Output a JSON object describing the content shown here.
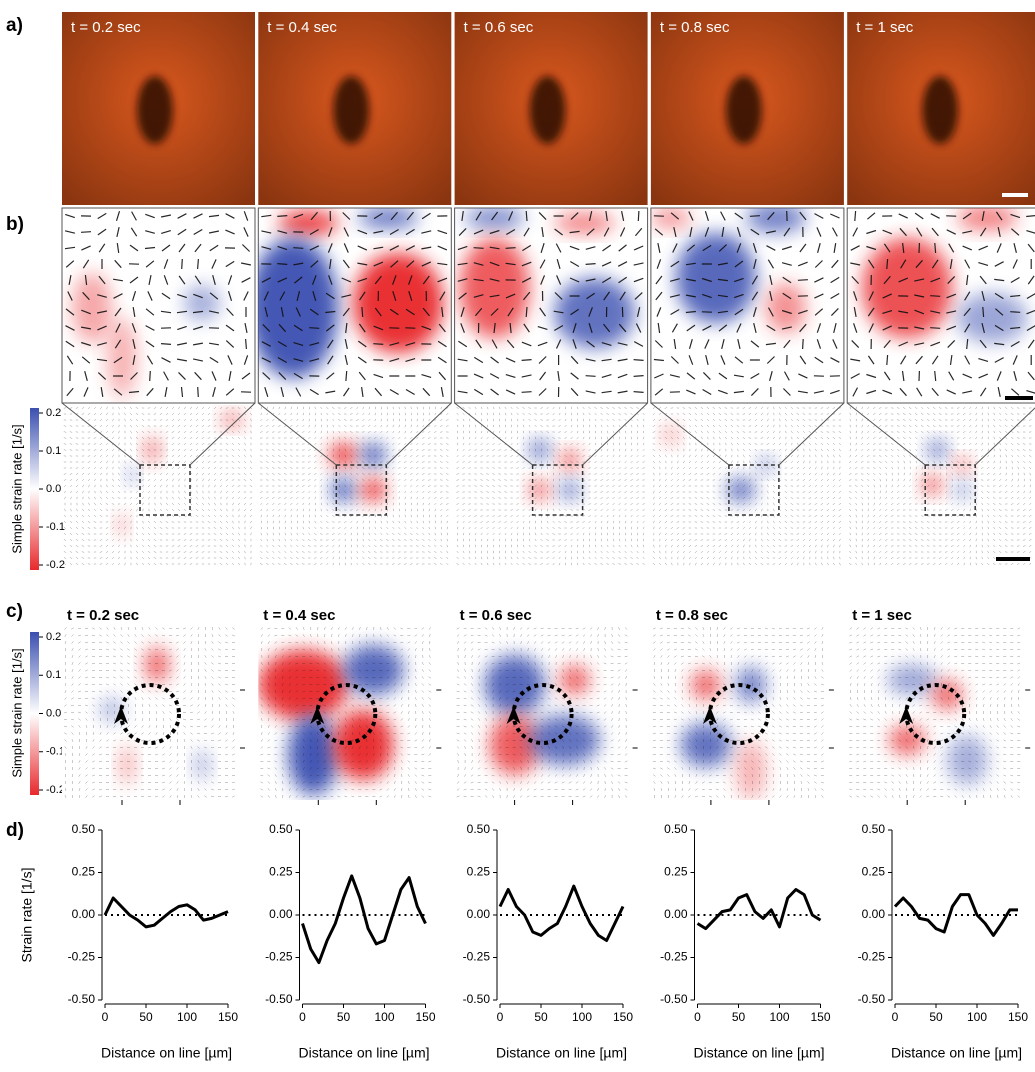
{
  "panels": {
    "a": {
      "label": "a)",
      "times": [
        "t = 0.2 sec",
        "t = 0.4 sec",
        "t = 0.6 sec",
        "t = 0.8 sec",
        "t = 1 sec"
      ]
    },
    "b": {
      "label": "b)",
      "colorbar": {
        "label": "Simple strain rate [1/s]",
        "ticks": [
          0.2,
          0.1,
          {
            "value": 0,
            "label": "0.0"
          },
          -0.1,
          -0.2
        ]
      }
    },
    "c": {
      "label": "c)",
      "times": [
        "t = 0.2 sec",
        "t = 0.4 sec",
        "t = 0.6 sec",
        "t = 0.8 sec",
        "t = 1 sec"
      ],
      "colorbar": {
        "label": "Simple strain rate [1/s]",
        "ticks": [
          0.2,
          0.1,
          {
            "value": 0,
            "label": "0.0"
          },
          -0.1,
          -0.2
        ]
      }
    },
    "d": {
      "label": "d)"
    }
  },
  "chart_data": [
    {
      "type": "line",
      "ylabel": "Strain rate [1/s]",
      "xlabel": "Distance on line [µm]",
      "color": "#000000",
      "x": [
        0,
        10,
        20,
        30,
        40,
        50,
        60,
        70,
        80,
        90,
        100,
        110,
        120,
        130,
        140,
        150
      ],
      "values": [
        0.0,
        0.1,
        0.05,
        0.0,
        -0.03,
        -0.07,
        -0.06,
        -0.02,
        0.02,
        0.05,
        0.06,
        0.03,
        -0.03,
        -0.02,
        0.0,
        0.02
      ],
      "xlim": [
        0,
        150
      ],
      "xticks": [
        0,
        50,
        100,
        150
      ],
      "ylim": [
        -0.5,
        0.5
      ],
      "yticks": [
        {
          "value": 0.5,
          "label": "0.50"
        },
        {
          "value": 0.25,
          "label": "0.25"
        },
        {
          "value": 0,
          "label": "0.00"
        },
        {
          "value": -0.25,
          "label": "-0.25"
        },
        {
          "value": -0.5,
          "label": "-0.50"
        }
      ]
    },
    {
      "type": "line",
      "xlabel": "Distance on line [µm]",
      "color": "#000000",
      "x": [
        0,
        10,
        20,
        30,
        40,
        50,
        60,
        70,
        80,
        90,
        100,
        110,
        120,
        130,
        140,
        150
      ],
      "values": [
        -0.05,
        -0.2,
        -0.28,
        -0.15,
        -0.05,
        0.1,
        0.23,
        0.1,
        -0.08,
        -0.17,
        -0.15,
        0.0,
        0.15,
        0.22,
        0.05,
        -0.05
      ],
      "xlim": [
        0,
        150
      ],
      "xticks": [
        0,
        50,
        100,
        150
      ],
      "ylim": [
        -0.5,
        0.5
      ],
      "yticks": [
        {
          "value": 0.5,
          "label": "0.50"
        },
        {
          "value": 0.25,
          "label": "0.25"
        },
        {
          "value": 0,
          "label": "0.00"
        },
        {
          "value": -0.25,
          "label": "-0.25"
        },
        {
          "value": -0.5,
          "label": "-0.50"
        }
      ]
    },
    {
      "type": "line",
      "xlabel": "Distance on line [µm]",
      "color": "#000000",
      "x": [
        0,
        10,
        20,
        30,
        40,
        50,
        60,
        70,
        80,
        90,
        100,
        110,
        120,
        130,
        140,
        150
      ],
      "values": [
        0.05,
        0.15,
        0.05,
        0.0,
        -0.1,
        -0.12,
        -0.08,
        -0.05,
        0.05,
        0.17,
        0.05,
        -0.05,
        -0.12,
        -0.15,
        -0.05,
        0.05
      ],
      "xlim": [
        0,
        150
      ],
      "xticks": [
        0,
        50,
        100,
        150
      ],
      "ylim": [
        -0.5,
        0.5
      ],
      "yticks": [
        {
          "value": 0.5,
          "label": "0.50"
        },
        {
          "value": 0.25,
          "label": "0.25"
        },
        {
          "value": 0,
          "label": "0.00"
        },
        {
          "value": -0.25,
          "label": "-0.25"
        },
        {
          "value": -0.5,
          "label": "-0.50"
        }
      ]
    },
    {
      "type": "line",
      "xlabel": "Distance on line [µm]",
      "color": "#000000",
      "x": [
        0,
        10,
        20,
        30,
        40,
        50,
        60,
        70,
        80,
        90,
        100,
        110,
        120,
        130,
        140,
        150
      ],
      "values": [
        -0.05,
        -0.08,
        -0.03,
        0.02,
        0.03,
        0.1,
        0.12,
        0.02,
        -0.02,
        0.03,
        -0.07,
        0.1,
        0.15,
        0.12,
        0.0,
        -0.03
      ],
      "xlim": [
        0,
        150
      ],
      "xticks": [
        0,
        50,
        100,
        150
      ],
      "ylim": [
        -0.5,
        0.5
      ],
      "yticks": [
        {
          "value": 0.5,
          "label": "0.50"
        },
        {
          "value": 0.25,
          "label": "0.25"
        },
        {
          "value": 0,
          "label": "0.00"
        },
        {
          "value": -0.25,
          "label": "-0.25"
        },
        {
          "value": -0.5,
          "label": "-0.50"
        }
      ]
    },
    {
      "type": "line",
      "xlabel": "Distance on line [µm]",
      "color": "#000000",
      "x": [
        0,
        10,
        20,
        30,
        40,
        50,
        60,
        70,
        80,
        90,
        100,
        110,
        120,
        130,
        140,
        150
      ],
      "values": [
        0.05,
        0.1,
        0.05,
        -0.02,
        -0.03,
        -0.08,
        -0.1,
        0.05,
        0.12,
        0.12,
        0.0,
        -0.05,
        -0.12,
        -0.05,
        0.03,
        0.03
      ],
      "xlim": [
        0,
        150
      ],
      "xticks": [
        0,
        50,
        100,
        150
      ],
      "ylim": [
        -0.5,
        0.5
      ],
      "yticks": [
        {
          "value": 0.5,
          "label": "0.50"
        },
        {
          "value": 0.25,
          "label": "0.25"
        },
        {
          "value": 0,
          "label": "0.00"
        },
        {
          "value": -0.25,
          "label": "-0.25"
        },
        {
          "value": -0.5,
          "label": "-0.50"
        }
      ]
    }
  ]
}
